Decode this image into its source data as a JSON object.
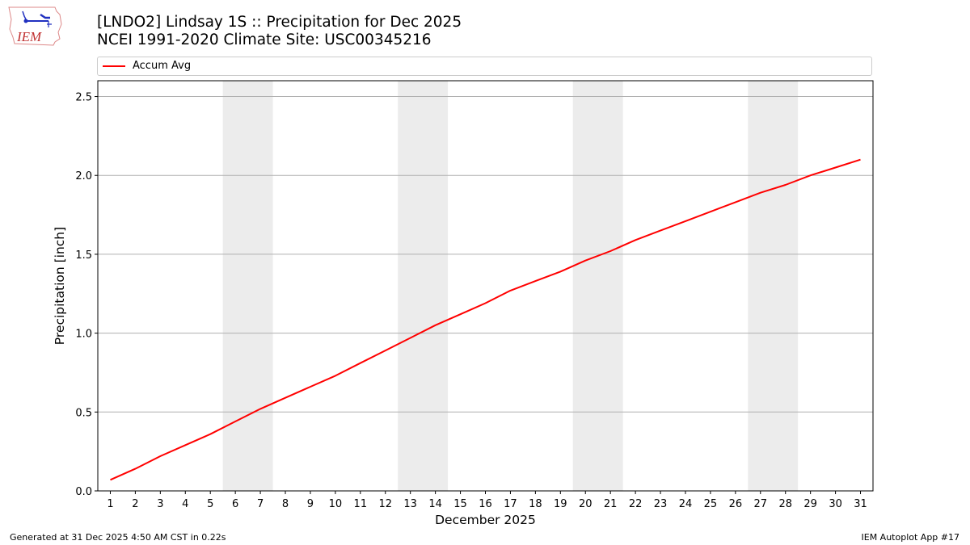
{
  "header": {
    "title_line1": "[LNDO2] Lindsay 1S :: Precipitation for Dec 2025",
    "title_line2": "NCEI 1991-2020 Climate Site: USC00345216",
    "logo_text": "IEM"
  },
  "legend": {
    "items": [
      {
        "label": "Accum Avg",
        "color": "#ff0000"
      }
    ]
  },
  "footer": {
    "left": "Generated at 31 Dec 2025 4:50 AM CST in 0.22s",
    "right": "IEM Autoplot App #17"
  },
  "colors": {
    "line": "#ff0000",
    "weekend_band": "#ececec",
    "grid": "#b0b0b0"
  },
  "chart_data": {
    "type": "line",
    "title": "[LNDO2] Lindsay 1S :: Precipitation for Dec 2025",
    "subtitle": "NCEI 1991-2020 Climate Site: USC00345216",
    "xlabel": "December 2025",
    "ylabel": "Precipitation [inch]",
    "ylim": [
      0,
      2.6
    ],
    "xlim": [
      0.5,
      31.5
    ],
    "yticks": [
      0.0,
      0.5,
      1.0,
      1.5,
      2.0,
      2.5
    ],
    "ytick_labels": [
      "0.0",
      "0.5",
      "1.0",
      "1.5",
      "2.0",
      "2.5"
    ],
    "grid": "y",
    "legend_position": "top",
    "x": [
      1,
      2,
      3,
      4,
      5,
      6,
      7,
      8,
      9,
      10,
      11,
      12,
      13,
      14,
      15,
      16,
      17,
      18,
      19,
      20,
      21,
      22,
      23,
      24,
      25,
      26,
      27,
      28,
      29,
      30,
      31
    ],
    "series": [
      {
        "name": "Accum Avg",
        "color": "#ff0000",
        "values": [
          0.07,
          0.14,
          0.22,
          0.29,
          0.36,
          0.44,
          0.52,
          0.59,
          0.66,
          0.73,
          0.81,
          0.89,
          0.97,
          1.05,
          1.12,
          1.19,
          1.27,
          1.33,
          1.39,
          1.46,
          1.52,
          1.59,
          1.65,
          1.71,
          1.77,
          1.83,
          1.89,
          1.94,
          2.0,
          2.05,
          2.1
        ]
      }
    ],
    "shaded_bands": [
      [
        5.5,
        7.5
      ],
      [
        12.5,
        14.5
      ],
      [
        19.5,
        21.5
      ],
      [
        26.5,
        28.5
      ]
    ]
  }
}
